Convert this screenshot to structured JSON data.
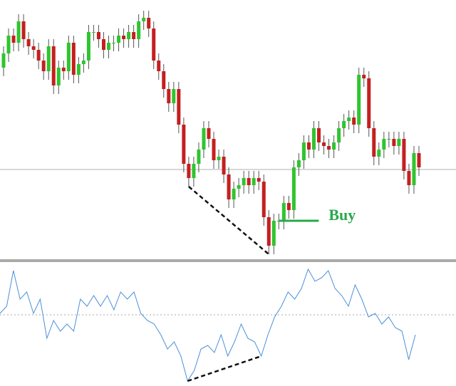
{
  "chart_data": [
    {
      "type": "candlestick",
      "annotation": "Buy",
      "up_color": "#2fc42f",
      "down_color": "#c41f1f",
      "ylim": [
        0,
        365
      ],
      "hline": 127,
      "open": [
        270,
        290,
        315,
        305,
        335,
        310,
        300,
        295,
        280,
        265,
        300,
        245,
        270,
        265,
        305,
        260,
        275,
        280,
        320,
        320,
        310,
        295,
        305,
        305,
        315,
        310,
        320,
        310,
        335,
        340,
        325,
        280,
        265,
        240,
        220,
        240,
        190,
        135,
        115,
        135,
        155,
        185,
        170,
        140,
        145,
        120,
        85,
        100,
        105,
        115,
        105,
        115,
        110,
        60,
        20,
        55,
        55,
        80,
        70,
        130,
        140,
        165,
        155,
        185,
        165,
        160,
        155,
        165,
        185,
        195,
        200,
        190,
        260,
        255,
        185,
        145,
        155,
        170,
        170,
        160,
        170,
        125,
        105,
        150
      ],
      "close": [
        290,
        315,
        305,
        335,
        310,
        300,
        295,
        280,
        265,
        300,
        245,
        270,
        265,
        305,
        260,
        275,
        280,
        320,
        320,
        310,
        295,
        305,
        305,
        315,
        310,
        320,
        310,
        335,
        340,
        325,
        280,
        265,
        240,
        220,
        240,
        190,
        135,
        115,
        135,
        155,
        185,
        170,
        140,
        145,
        120,
        85,
        100,
        105,
        115,
        105,
        115,
        110,
        60,
        20,
        55,
        55,
        80,
        70,
        130,
        140,
        165,
        155,
        185,
        165,
        160,
        155,
        165,
        185,
        195,
        200,
        190,
        260,
        255,
        185,
        145,
        155,
        170,
        170,
        160,
        170,
        125,
        105,
        150,
        130
      ],
      "high": [
        300,
        325,
        325,
        345,
        345,
        320,
        310,
        305,
        290,
        310,
        310,
        280,
        280,
        315,
        315,
        285,
        290,
        330,
        330,
        330,
        320,
        315,
        315,
        325,
        325,
        330,
        330,
        345,
        350,
        350,
        335,
        290,
        275,
        250,
        250,
        250,
        200,
        145,
        145,
        165,
        195,
        195,
        180,
        155,
        155,
        130,
        110,
        115,
        125,
        125,
        125,
        125,
        120,
        70,
        65,
        65,
        90,
        90,
        140,
        150,
        175,
        175,
        195,
        195,
        175,
        170,
        175,
        195,
        205,
        210,
        210,
        270,
        270,
        265,
        195,
        165,
        180,
        180,
        180,
        180,
        180,
        135,
        160,
        160
      ],
      "low": [
        258,
        278,
        293,
        293,
        298,
        288,
        283,
        268,
        253,
        253,
        233,
        233,
        253,
        253,
        248,
        248,
        263,
        268,
        308,
        298,
        283,
        283,
        293,
        293,
        298,
        298,
        298,
        298,
        323,
        313,
        268,
        253,
        228,
        208,
        208,
        178,
        123,
        103,
        103,
        123,
        143,
        158,
        128,
        128,
        108,
        73,
        73,
        88,
        93,
        93,
        93,
        98,
        48,
        8,
        8,
        43,
        43,
        58,
        58,
        118,
        128,
        143,
        143,
        153,
        148,
        143,
        143,
        153,
        173,
        183,
        178,
        178,
        243,
        173,
        133,
        133,
        143,
        158,
        148,
        148,
        113,
        93,
        93,
        118
      ]
    },
    {
      "type": "line",
      "color": "#4a90d9",
      "ylim": [
        0,
        174
      ],
      "hline": 100,
      "values": [
        102,
        112,
        162,
        122,
        132,
        102,
        122,
        67,
        92,
        77,
        87,
        77,
        122,
        112,
        127,
        112,
        127,
        107,
        132,
        122,
        132,
        102,
        92,
        87,
        72,
        52,
        62,
        42,
        7,
        22,
        52,
        57,
        47,
        72,
        42,
        62,
        87,
        67,
        62,
        42,
        72,
        97,
        112,
        132,
        122,
        137,
        164,
        147,
        152,
        162,
        137,
        127,
        112,
        142,
        122,
        97,
        102,
        87,
        97,
        82,
        77,
        37,
        72
      ]
    }
  ]
}
